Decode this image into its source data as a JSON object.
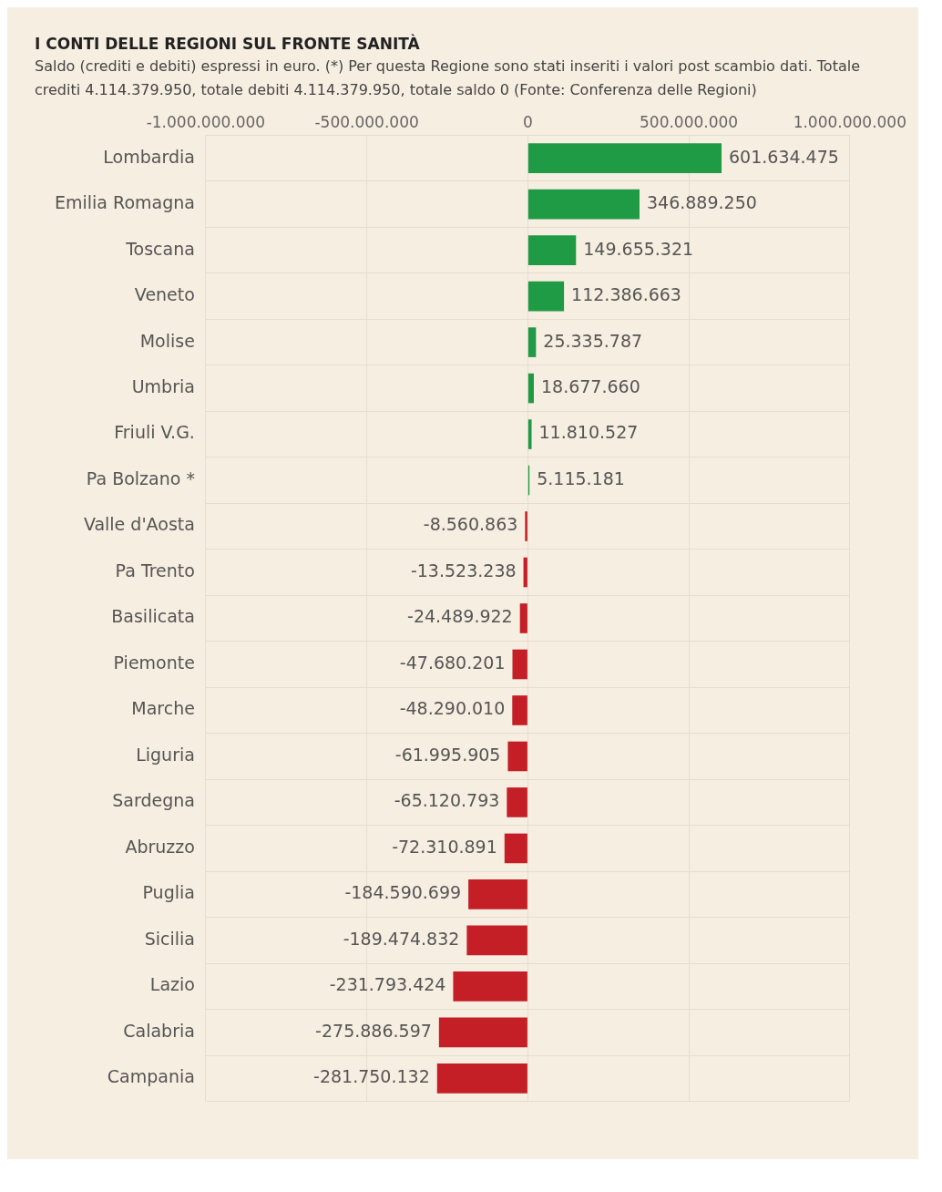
{
  "chart_data": {
    "type": "bar",
    "orientation": "horizontal",
    "title": "I CONTI DELLE REGIONI SUL FRONTE SANITÀ",
    "subtitle": "Saldo (crediti e debiti) espressi in euro. (*) Per questa Regione sono stati inseriti i valori post scambio dati. Totale crediti 4.114.379.950, totale debiti 4.114.379.950, totale saldo 0 (Fonte: Conferenza delle Regioni)",
    "categories": [
      "Lombardia",
      "Emilia Romagna",
      "Toscana",
      "Veneto",
      "Molise",
      "Umbria",
      "Friuli V.G.",
      "Pa Bolzano *",
      "Valle d'Aosta",
      "Pa Trento",
      "Basilicata",
      "Piemonte",
      "Marche",
      "Liguria",
      "Sardegna",
      "Abruzzo",
      "Puglia",
      "Sicilia",
      "Lazio",
      "Calabria",
      "Campania"
    ],
    "values": [
      601634475,
      346889250,
      149655321,
      112386663,
      25335787,
      18677660,
      11810527,
      5115181,
      -8560863,
      -13523238,
      -24489922,
      -47680201,
      -48290010,
      -61995905,
      -65120793,
      -72310891,
      -184590699,
      -189474832,
      -231793424,
      -275886597,
      -281750132
    ],
    "value_labels": [
      "601.634.475",
      "346.889.250",
      "149.655.321",
      "112.386.663",
      "25.335.787",
      "18.677.660",
      "11.810.527",
      "5.115.181",
      "-8.560.863",
      "-13.523.238",
      "-24.489.922",
      "-47.680.201",
      "-48.290.010",
      "-61.995.905",
      "-65.120.793",
      "-72.310.891",
      "-184.590.699",
      "-189.474.832",
      "-231.793.424",
      "-275.886.597",
      "-281.750.132"
    ],
    "colors": [
      "#1f9a45",
      "#1f9a45",
      "#1f9a45",
      "#1f9a45",
      "#1f9a45",
      "#1f9a45",
      "#1f9a45",
      "#1f9a45",
      "#c41e26",
      "#c41e26",
      "#c41e26",
      "#c41e26",
      "#c41e26",
      "#c41e26",
      "#c41e26",
      "#c41e26",
      "#c41e26",
      "#c41e26",
      "#c41e26",
      "#c41e26",
      "#c41e26"
    ],
    "xlim": [
      -1000000000,
      1000000000
    ],
    "xticks": [
      {
        "value": -1000000000,
        "label": "-1.000.000.000"
      },
      {
        "value": -500000000,
        "label": "-500.000.000"
      },
      {
        "value": 0,
        "label": "0"
      },
      {
        "value": 500000000,
        "label": "500.000.000"
      },
      {
        "value": 1000000000,
        "label": "1.000.000.000"
      }
    ],
    "grid": true,
    "legend": false
  }
}
